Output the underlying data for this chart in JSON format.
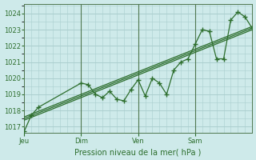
{
  "title": "Pression niveau de la mer( hPa )",
  "bg_color": "#ceeaea",
  "grid_color": "#aacece",
  "line_color": "#2d6e2d",
  "ylim": [
    1016.6,
    1024.6
  ],
  "yticks": [
    1017,
    1018,
    1019,
    1020,
    1021,
    1022,
    1023,
    1024
  ],
  "xlim": [
    0,
    96
  ],
  "day_positions": [
    0,
    24,
    48,
    72
  ],
  "day_labels": [
    "Jeu",
    "Dim",
    "Ven",
    "Sam"
  ],
  "vline_positions": [
    24,
    48,
    72
  ],
  "series_detailed": {
    "x": [
      0,
      3,
      6,
      24,
      27,
      30,
      33,
      36,
      39,
      42,
      45,
      48,
      51,
      54,
      57,
      60,
      63,
      66,
      69,
      72,
      75,
      78,
      81,
      84,
      87,
      90,
      93,
      96
    ],
    "y": [
      1016.7,
      1017.7,
      1018.2,
      1019.7,
      1019.6,
      1019.0,
      1018.8,
      1019.2,
      1018.7,
      1018.6,
      1019.3,
      1019.9,
      1018.9,
      1020.0,
      1019.7,
      1019.0,
      1020.5,
      1021.0,
      1021.2,
      1022.1,
      1023.0,
      1022.9,
      1021.2,
      1021.2,
      1023.6,
      1024.1,
      1023.8,
      1023.1
    ]
  },
  "series_trend1": {
    "x": [
      0,
      96
    ],
    "y": [
      1017.5,
      1023.1
    ]
  },
  "series_trend2": {
    "x": [
      0,
      96
    ],
    "y": [
      1017.6,
      1023.2
    ]
  },
  "series_trend3": {
    "x": [
      0,
      96
    ],
    "y": [
      1017.4,
      1023.0
    ]
  }
}
